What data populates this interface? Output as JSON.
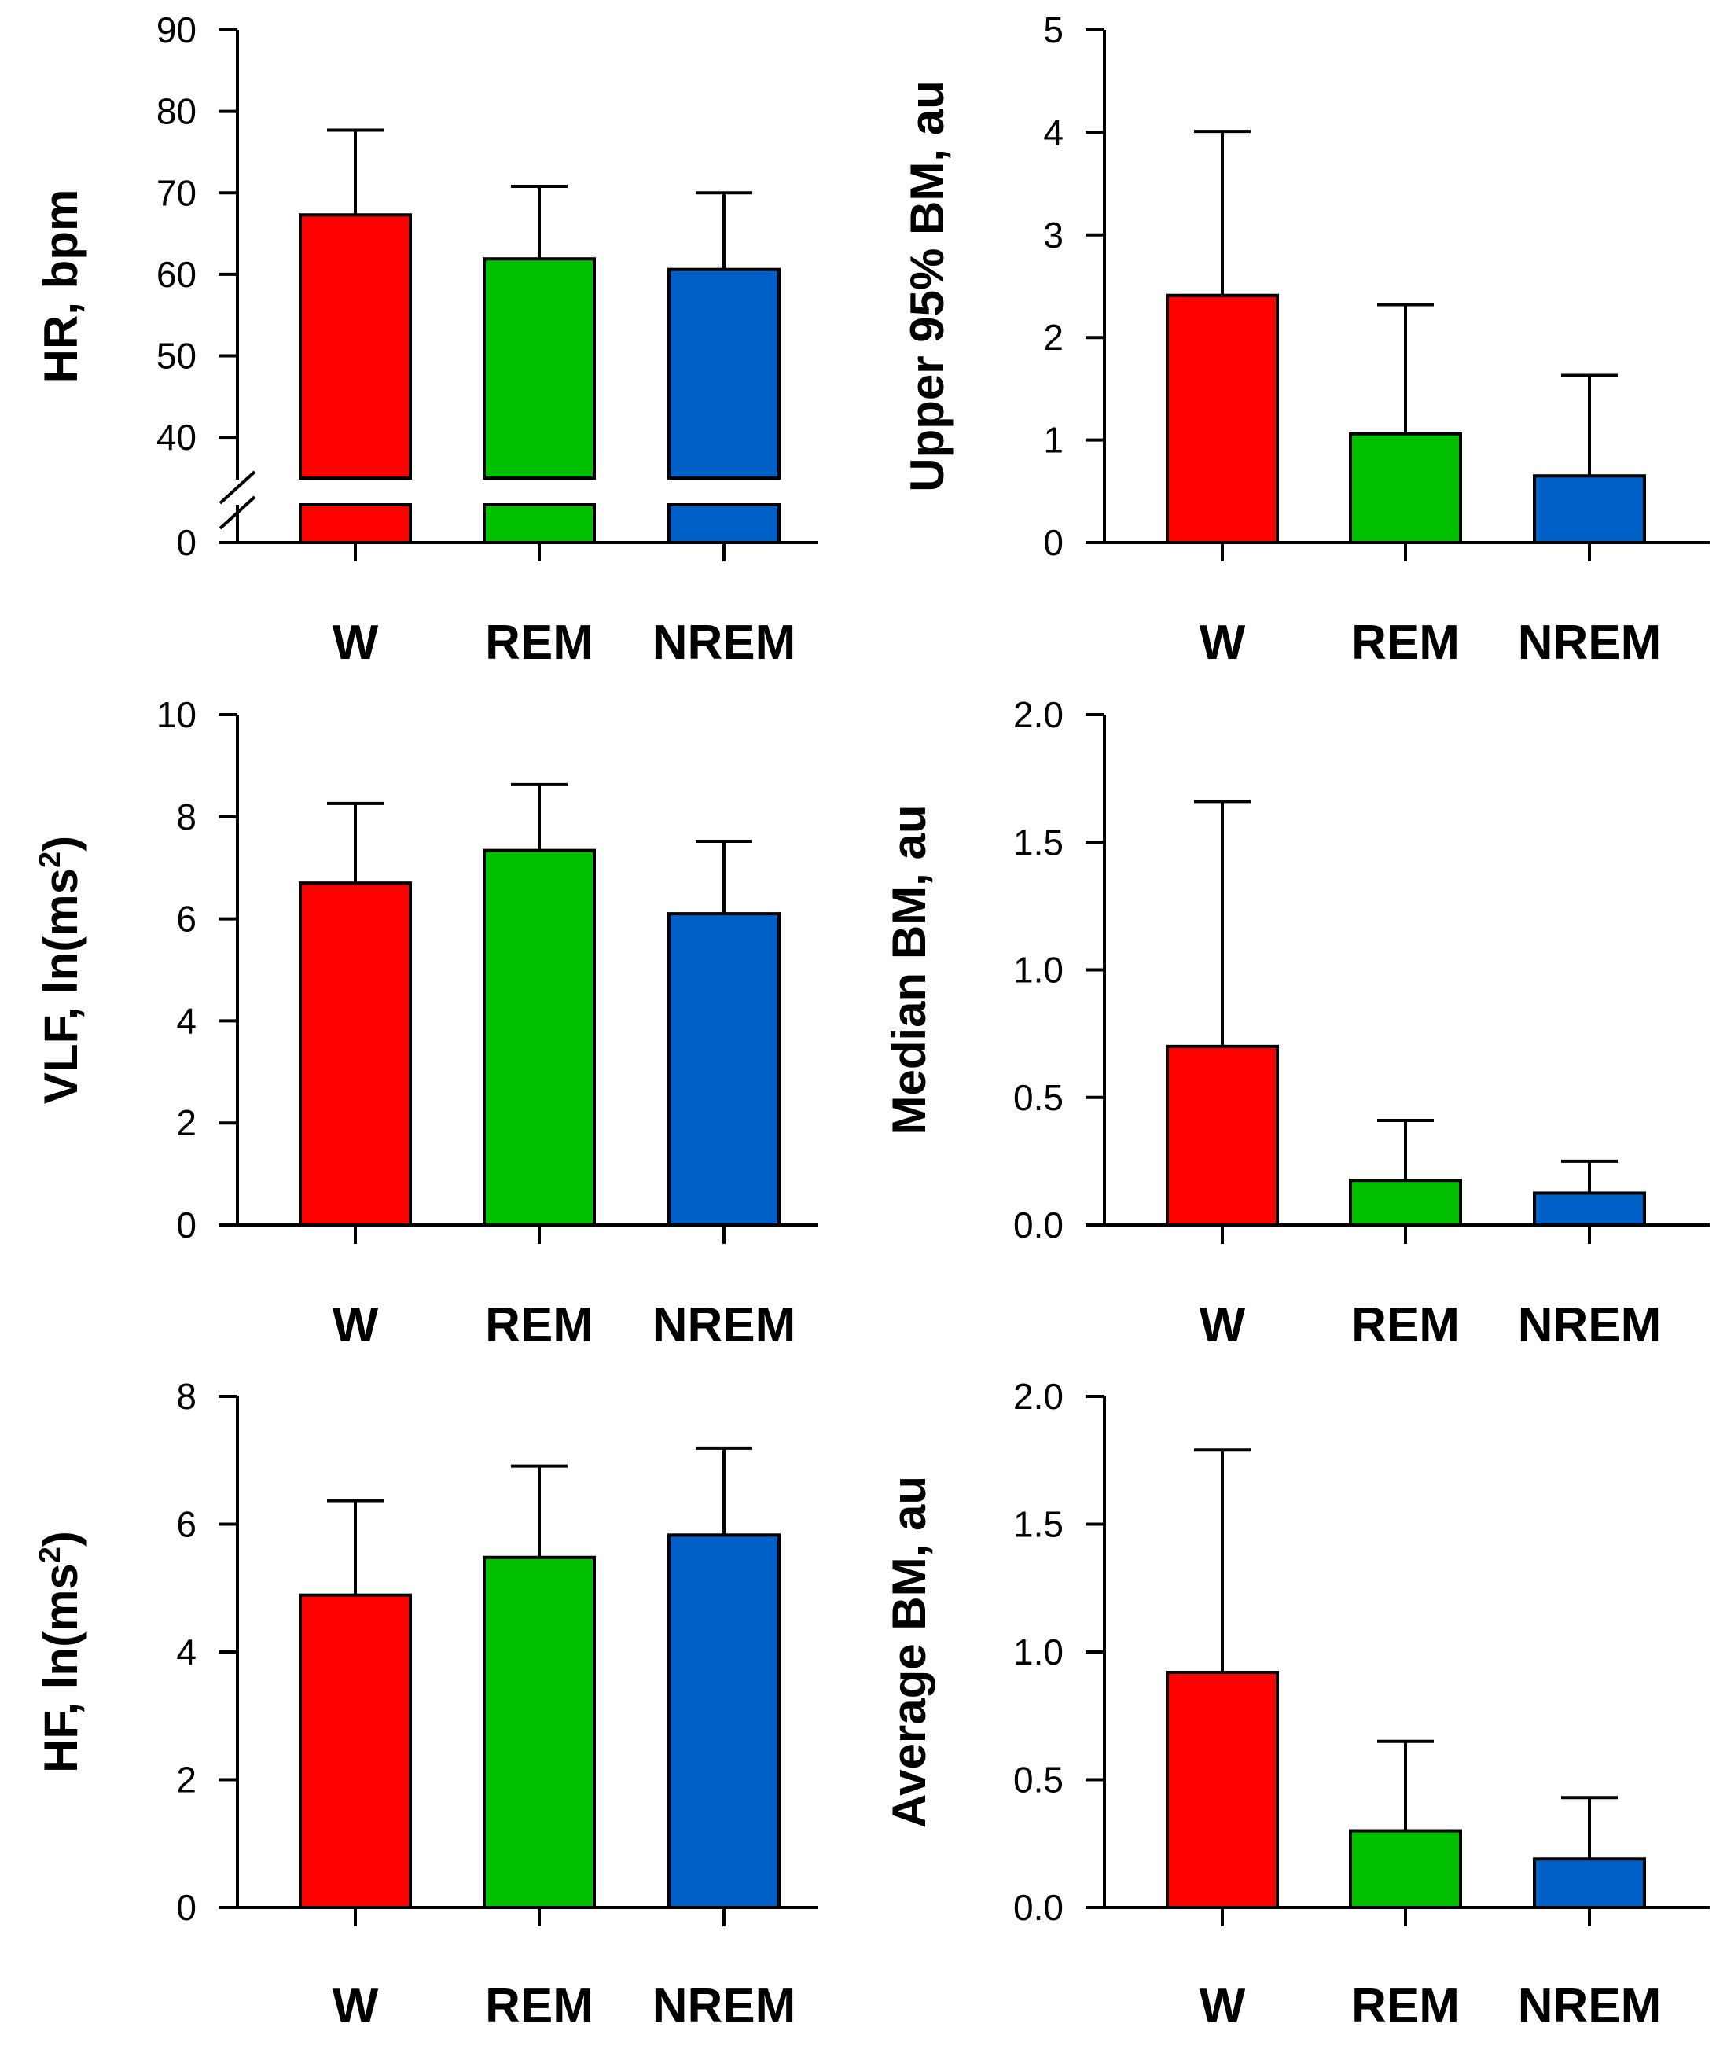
{
  "colors": {
    "W": "#ff0000",
    "REM": "#00c000",
    "NREM": "#0060c8",
    "axis": "#000000"
  },
  "chart_data": [
    {
      "type": "bar",
      "categories": [
        "W",
        "REM",
        "NREM"
      ],
      "values": [
        67.3,
        61.9,
        60.6
      ],
      "errors_upper": [
        77.7,
        70.8,
        70.0
      ],
      "ylabel": "HR, bpm",
      "ylim": [
        0,
        90
      ],
      "broken_axis": true,
      "yticks": [
        "0",
        "40",
        "50",
        "60",
        "70",
        "80",
        "90"
      ]
    },
    {
      "type": "bar",
      "categories": [
        "W",
        "REM",
        "NREM"
      ],
      "values": [
        2.41,
        1.06,
        0.65
      ],
      "errors_upper": [
        4.01,
        2.32,
        1.63
      ],
      "ylabel": "Upper 95% BM, au",
      "ylim": [
        0,
        5
      ],
      "yticks": [
        "0",
        "1",
        "2",
        "3",
        "4",
        "5"
      ]
    },
    {
      "type": "bar",
      "categories": [
        "W",
        "REM",
        "NREM"
      ],
      "values": [
        6.7,
        7.34,
        6.1
      ],
      "errors_upper": [
        8.26,
        8.63,
        7.52
      ],
      "ylabel_main": "VLF, ln(ms",
      "ylabel_sup": "2",
      "ylabel_end": ")",
      "ylim": [
        0,
        10
      ],
      "yticks": [
        "0",
        "2",
        "4",
        "6",
        "8",
        "10"
      ]
    },
    {
      "type": "bar",
      "categories": [
        "W",
        "REM",
        "NREM"
      ],
      "values": [
        0.7,
        0.175,
        0.125
      ],
      "errors_upper": [
        1.66,
        0.41,
        0.25
      ],
      "ylabel": "Median BM, au",
      "ylim": [
        0,
        2
      ],
      "yticks": [
        "0.0",
        "0.5",
        "1.0",
        "1.5",
        "2.0"
      ]
    },
    {
      "type": "bar",
      "categories": [
        "W",
        "REM",
        "NREM"
      ],
      "values": [
        4.89,
        5.48,
        5.83
      ],
      "errors_upper": [
        6.37,
        6.91,
        7.19
      ],
      "ylabel_main": "HF, ln(ms",
      "ylabel_sup": "2",
      "ylabel_end": ")",
      "ylim": [
        0,
        8
      ],
      "yticks": [
        "0",
        "2",
        "4",
        "6",
        "8"
      ]
    },
    {
      "type": "bar",
      "categories": [
        "W",
        "REM",
        "NREM"
      ],
      "values": [
        0.92,
        0.3,
        0.19
      ],
      "errors_upper": [
        1.79,
        0.65,
        0.43
      ],
      "ylabel": "Average BM, au",
      "ylim": [
        0,
        2
      ],
      "yticks": [
        "0.0",
        "0.5",
        "1.0",
        "1.5",
        "2.0"
      ]
    }
  ]
}
